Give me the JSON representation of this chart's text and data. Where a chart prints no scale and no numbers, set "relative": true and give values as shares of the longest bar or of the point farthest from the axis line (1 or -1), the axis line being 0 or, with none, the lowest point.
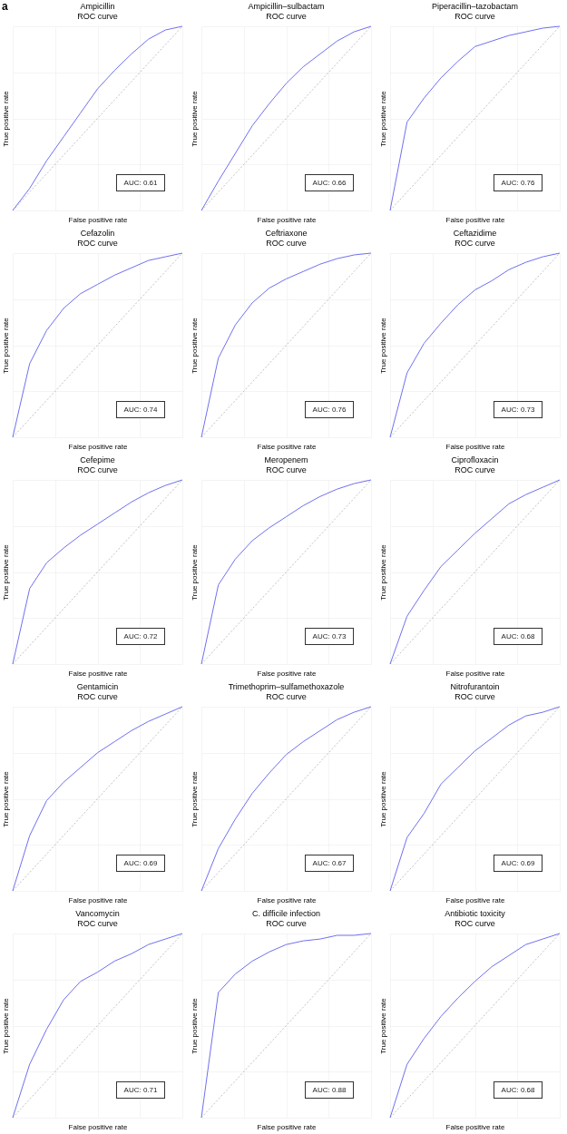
{
  "chart_data": [
    {
      "type": "line",
      "title": "Ampicillin\nROC curve",
      "xlabel": "False positive rate",
      "ylabel": "True positive rate",
      "relative": true,
      "grid": true,
      "annotations": [
        "AUC: 0.61",
        "a"
      ],
      "categories": [
        null,
        null,
        null,
        null,
        null,
        null,
        null,
        null,
        null,
        null,
        null
      ],
      "series": [
        {
          "color": "#b0b0b0",
          "line_style": "dotted",
          "values": [
            0,
            0.1,
            0.2,
            0.3,
            0.4,
            0.5,
            0.6,
            0.7,
            0.8,
            0.9,
            1
          ]
        },
        {
          "color": "#7070f0",
          "values": [
            0,
            0.12,
            0.27,
            0.4,
            0.53,
            0.66,
            0.76,
            0.85,
            0.93,
            0.98,
            1
          ]
        }
      ]
    },
    {
      "type": "line",
      "title": "Ampicillin–sulbactam\nROC curve",
      "xlabel": "False positive rate",
      "ylabel": "True positive rate",
      "relative": true,
      "grid": true,
      "annotations": [
        "AUC: 0.66"
      ],
      "categories": [
        null,
        null,
        null,
        null,
        null,
        null,
        null,
        null,
        null,
        null,
        null
      ],
      "series": [
        {
          "color": "#b0b0b0",
          "line_style": "dotted",
          "values": [
            0,
            0.1,
            0.2,
            0.3,
            0.4,
            0.5,
            0.6,
            0.7,
            0.8,
            0.9,
            1
          ]
        },
        {
          "color": "#7070f0",
          "values": [
            0,
            0.16,
            0.31,
            0.46,
            0.58,
            0.69,
            0.78,
            0.85,
            0.92,
            0.97,
            1
          ]
        }
      ]
    },
    {
      "type": "line",
      "title": "Piperacillin–tazobactam\nROC curve",
      "xlabel": "False positive rate",
      "ylabel": "True positive rate",
      "relative": true,
      "grid": true,
      "annotations": [
        "AUC: 0.76"
      ],
      "categories": [
        null,
        null,
        null,
        null,
        null,
        null,
        null,
        null,
        null,
        null,
        null
      ],
      "series": [
        {
          "color": "#b0b0b0",
          "line_style": "dotted",
          "values": [
            0,
            0.1,
            0.2,
            0.3,
            0.4,
            0.5,
            0.6,
            0.7,
            0.8,
            0.9,
            1
          ]
        },
        {
          "color": "#7070f0",
          "values": [
            0,
            0.48,
            0.61,
            0.72,
            0.81,
            0.89,
            0.92,
            0.95,
            0.97,
            0.99,
            1
          ]
        }
      ]
    },
    {
      "type": "line",
      "title": "Cefazolin\nROC curve",
      "xlabel": "False positive rate",
      "ylabel": "True positive rate",
      "relative": true,
      "grid": true,
      "annotations": [
        "AUC: 0.74"
      ],
      "categories": [
        null,
        null,
        null,
        null,
        null,
        null,
        null,
        null,
        null,
        null,
        null
      ],
      "series": [
        {
          "color": "#b0b0b0",
          "line_style": "dotted",
          "values": [
            0,
            0.1,
            0.2,
            0.3,
            0.4,
            0.5,
            0.6,
            0.7,
            0.8,
            0.9,
            1
          ]
        },
        {
          "color": "#7070f0",
          "values": [
            0,
            0.4,
            0.58,
            0.7,
            0.78,
            0.83,
            0.88,
            0.92,
            0.96,
            0.98,
            1
          ]
        }
      ]
    },
    {
      "type": "line",
      "title": "Ceftriaxone\nROC curve",
      "xlabel": "False positive rate",
      "ylabel": "True positive rate",
      "relative": true,
      "grid": true,
      "annotations": [
        "AUC: 0.76"
      ],
      "categories": [
        null,
        null,
        null,
        null,
        null,
        null,
        null,
        null,
        null,
        null,
        null
      ],
      "series": [
        {
          "color": "#b0b0b0",
          "line_style": "dotted",
          "values": [
            0,
            0.1,
            0.2,
            0.3,
            0.4,
            0.5,
            0.6,
            0.7,
            0.8,
            0.9,
            1
          ]
        },
        {
          "color": "#7070f0",
          "values": [
            0,
            0.43,
            0.61,
            0.73,
            0.81,
            0.86,
            0.9,
            0.94,
            0.97,
            0.99,
            1
          ]
        }
      ]
    },
    {
      "type": "line",
      "title": "Ceftazidime\nROC curve",
      "xlabel": "False positive rate",
      "ylabel": "True positive rate",
      "relative": true,
      "grid": true,
      "annotations": [
        "AUC: 0.73"
      ],
      "categories": [
        null,
        null,
        null,
        null,
        null,
        null,
        null,
        null,
        null,
        null,
        null
      ],
      "series": [
        {
          "color": "#b0b0b0",
          "line_style": "dotted",
          "values": [
            0,
            0.1,
            0.2,
            0.3,
            0.4,
            0.5,
            0.6,
            0.7,
            0.8,
            0.9,
            1
          ]
        },
        {
          "color": "#7070f0",
          "values": [
            0,
            0.35,
            0.51,
            0.62,
            0.72,
            0.8,
            0.85,
            0.91,
            0.95,
            0.98,
            1
          ]
        }
      ]
    },
    {
      "type": "line",
      "title": "Cefepime\nROC curve",
      "xlabel": "False positive rate",
      "ylabel": "True positive rate",
      "relative": true,
      "grid": true,
      "annotations": [
        "AUC: 0.72"
      ],
      "categories": [
        null,
        null,
        null,
        null,
        null,
        null,
        null,
        null,
        null,
        null,
        null
      ],
      "series": [
        {
          "color": "#b0b0b0",
          "line_style": "dotted",
          "values": [
            0,
            0.1,
            0.2,
            0.3,
            0.4,
            0.5,
            0.6,
            0.7,
            0.8,
            0.9,
            1
          ]
        },
        {
          "color": "#7070f0",
          "values": [
            0,
            0.41,
            0.55,
            0.63,
            0.7,
            0.76,
            0.82,
            0.88,
            0.93,
            0.97,
            1
          ]
        }
      ]
    },
    {
      "type": "line",
      "title": "Meropenem\nROC curve",
      "xlabel": "False positive rate",
      "ylabel": "True positive rate",
      "relative": true,
      "grid": true,
      "annotations": [
        "AUC: 0.73"
      ],
      "categories": [
        null,
        null,
        null,
        null,
        null,
        null,
        null,
        null,
        null,
        null,
        null
      ],
      "series": [
        {
          "color": "#b0b0b0",
          "line_style": "dotted",
          "values": [
            0,
            0.1,
            0.2,
            0.3,
            0.4,
            0.5,
            0.6,
            0.7,
            0.8,
            0.9,
            1
          ]
        },
        {
          "color": "#7070f0",
          "values": [
            0,
            0.43,
            0.57,
            0.67,
            0.74,
            0.8,
            0.86,
            0.91,
            0.95,
            0.98,
            1
          ]
        }
      ]
    },
    {
      "type": "line",
      "title": "Ciprofloxacin\nROC curve",
      "xlabel": "False positive rate",
      "ylabel": "True positive rate",
      "relative": true,
      "grid": true,
      "annotations": [
        "AUC: 0.68"
      ],
      "categories": [
        null,
        null,
        null,
        null,
        null,
        null,
        null,
        null,
        null,
        null,
        null
      ],
      "series": [
        {
          "color": "#b0b0b0",
          "line_style": "dotted",
          "values": [
            0,
            0.1,
            0.2,
            0.3,
            0.4,
            0.5,
            0.6,
            0.7,
            0.8,
            0.9,
            1
          ]
        },
        {
          "color": "#7070f0",
          "values": [
            0,
            0.26,
            0.4,
            0.53,
            0.62,
            0.71,
            0.79,
            0.87,
            0.92,
            0.96,
            1
          ]
        }
      ]
    },
    {
      "type": "line",
      "title": "Gentamicin\nROC curve",
      "xlabel": "False positive rate",
      "ylabel": "True positive rate",
      "relative": true,
      "grid": true,
      "annotations": [
        "AUC: 0.69"
      ],
      "categories": [
        null,
        null,
        null,
        null,
        null,
        null,
        null,
        null,
        null,
        null,
        null
      ],
      "series": [
        {
          "color": "#b0b0b0",
          "line_style": "dotted",
          "values": [
            0,
            0.1,
            0.2,
            0.3,
            0.4,
            0.5,
            0.6,
            0.7,
            0.8,
            0.9,
            1
          ]
        },
        {
          "color": "#7070f0",
          "values": [
            0,
            0.3,
            0.49,
            0.59,
            0.67,
            0.75,
            0.81,
            0.87,
            0.92,
            0.96,
            1
          ]
        }
      ]
    },
    {
      "type": "line",
      "title": "Trimethoprim–sulfamethoxazole\nROC curve",
      "xlabel": "False positive rate",
      "ylabel": "True positive rate",
      "relative": true,
      "grid": true,
      "annotations": [
        "AUC: 0.67"
      ],
      "categories": [
        null,
        null,
        null,
        null,
        null,
        null,
        null,
        null,
        null,
        null,
        null
      ],
      "series": [
        {
          "color": "#b0b0b0",
          "line_style": "dotted",
          "values": [
            0,
            0.1,
            0.2,
            0.3,
            0.4,
            0.5,
            0.6,
            0.7,
            0.8,
            0.9,
            1
          ]
        },
        {
          "color": "#7070f0",
          "values": [
            0,
            0.23,
            0.39,
            0.53,
            0.64,
            0.74,
            0.81,
            0.87,
            0.93,
            0.97,
            1
          ]
        }
      ]
    },
    {
      "type": "line",
      "title": "Nitrofurantoin\nROC curve",
      "xlabel": "False positive rate",
      "ylabel": "True positive rate",
      "relative": true,
      "grid": true,
      "annotations": [
        "AUC: 0.69"
      ],
      "categories": [
        null,
        null,
        null,
        null,
        null,
        null,
        null,
        null,
        null,
        null,
        null
      ],
      "series": [
        {
          "color": "#b0b0b0",
          "line_style": "dotted",
          "values": [
            0,
            0.1,
            0.2,
            0.3,
            0.4,
            0.5,
            0.6,
            0.7,
            0.8,
            0.9,
            1
          ]
        },
        {
          "color": "#7070f0",
          "values": [
            0,
            0.29,
            0.42,
            0.58,
            0.67,
            0.76,
            0.83,
            0.9,
            0.95,
            0.97,
            1
          ]
        }
      ]
    },
    {
      "type": "line",
      "title": "Vancomycin\nROC curve",
      "xlabel": "False positive rate",
      "ylabel": "True positive rate",
      "relative": true,
      "grid": true,
      "annotations": [
        "AUC: 0.71"
      ],
      "categories": [
        null,
        null,
        null,
        null,
        null,
        null,
        null,
        null,
        null,
        null,
        null
      ],
      "series": [
        {
          "color": "#b0b0b0",
          "line_style": "dotted",
          "values": [
            0,
            0.1,
            0.2,
            0.3,
            0.4,
            0.5,
            0.6,
            0.7,
            0.8,
            0.9,
            1
          ]
        },
        {
          "color": "#7070f0",
          "values": [
            0,
            0.29,
            0.48,
            0.64,
            0.74,
            0.79,
            0.85,
            0.89,
            0.94,
            0.97,
            1
          ]
        }
      ]
    },
    {
      "type": "line",
      "title": "C. difficile infection\nROC curve",
      "xlabel": "False positive rate",
      "ylabel": "True positive rate",
      "relative": true,
      "grid": true,
      "annotations": [
        "AUC: 0.88"
      ],
      "categories": [
        null,
        null,
        null,
        null,
        null,
        null,
        null,
        null,
        null,
        null,
        null
      ],
      "series": [
        {
          "color": "#b0b0b0",
          "line_style": "dotted",
          "values": [
            0,
            0.1,
            0.2,
            0.3,
            0.4,
            0.5,
            0.6,
            0.7,
            0.8,
            0.9,
            1
          ]
        },
        {
          "color": "#7070f0",
          "values": [
            0,
            0.68,
            0.78,
            0.85,
            0.9,
            0.94,
            0.96,
            0.97,
            0.99,
            0.99,
            1
          ]
        }
      ]
    },
    {
      "type": "line",
      "title": "Antibiotic toxicity\nROC curve",
      "xlabel": "False positive rate",
      "ylabel": "True positive rate",
      "relative": true,
      "grid": true,
      "annotations": [
        "AUC: 0.68"
      ],
      "categories": [
        null,
        null,
        null,
        null,
        null,
        null,
        null,
        null,
        null,
        null,
        null
      ],
      "series": [
        {
          "color": "#b0b0b0",
          "line_style": "dotted",
          "values": [
            0,
            0.1,
            0.2,
            0.3,
            0.4,
            0.5,
            0.6,
            0.7,
            0.8,
            0.9,
            1
          ]
        },
        {
          "color": "#7070f0",
          "values": [
            0,
            0.29,
            0.43,
            0.55,
            0.65,
            0.74,
            0.82,
            0.88,
            0.94,
            0.97,
            1
          ]
        }
      ]
    }
  ]
}
